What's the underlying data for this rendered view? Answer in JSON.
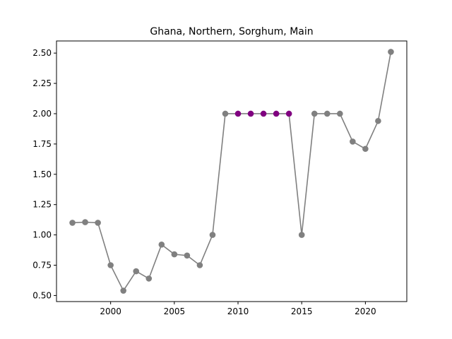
{
  "chart_data": {
    "type": "line",
    "title": "Ghana, Northern, Sorghum, Main",
    "xlabel": "",
    "ylabel": "",
    "xlim": [
      1995.75,
      2023.25
    ],
    "ylim": [
      0.45,
      2.6
    ],
    "xticks": [
      2000,
      2005,
      2010,
      2015,
      2020
    ],
    "yticks": [
      0.5,
      0.75,
      1.0,
      1.25,
      1.5,
      1.75,
      2.0,
      2.25,
      2.5
    ],
    "grid": false,
    "line_color": "#808080",
    "default_marker_color": "#808080",
    "highlight_marker_color": "#800080",
    "series": [
      {
        "x": [
          1997,
          1998,
          1999,
          2000,
          2001,
          2002,
          2003,
          2004,
          2005,
          2006,
          2007,
          2008,
          2009,
          2010,
          2011,
          2012,
          2013,
          2014,
          2015,
          2016,
          2017,
          2018,
          2019,
          2020,
          2021,
          2022
        ],
        "values": [
          1.1,
          1.105,
          1.1,
          0.75,
          0.54,
          0.7,
          0.64,
          0.92,
          0.84,
          0.83,
          0.75,
          1.0,
          2.0,
          2.0,
          2.0,
          2.0,
          2.0,
          2.0,
          1.0,
          2.0,
          2.0,
          2.0,
          1.77,
          1.71,
          1.94,
          2.51
        ],
        "highlighted_x": [
          2010,
          2011,
          2012,
          2013,
          2014
        ]
      }
    ]
  }
}
